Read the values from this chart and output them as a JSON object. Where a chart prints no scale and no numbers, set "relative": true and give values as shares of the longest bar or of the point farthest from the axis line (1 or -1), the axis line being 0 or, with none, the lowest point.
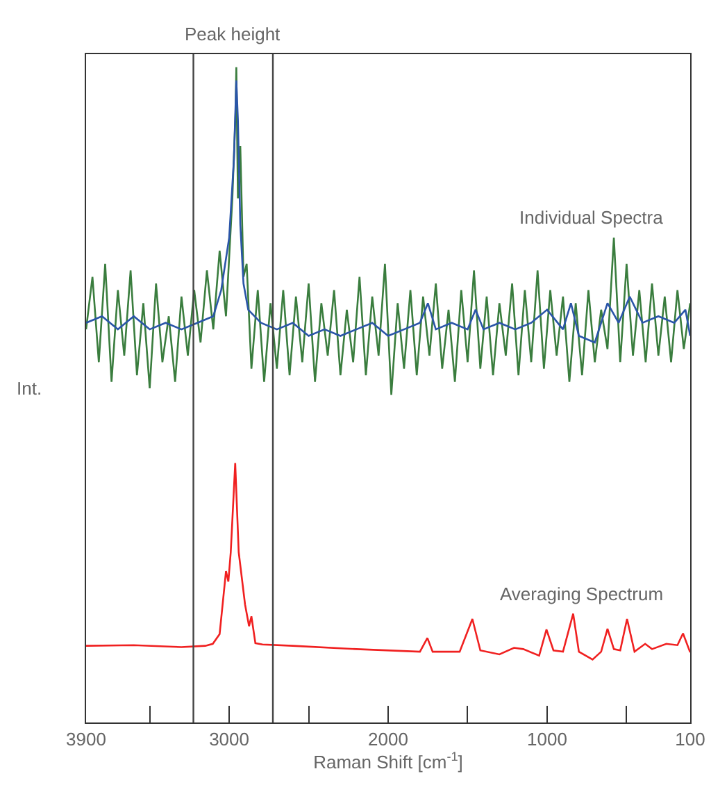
{
  "chart_data": {
    "type": "line",
    "relative": true,
    "xlabel": "Raman Shift [cm$^{-1}$]",
    "ylabel": "Int.",
    "xlim": [
      3900,
      100
    ],
    "xticks": [
      3900,
      {
        "value": 3500,
        "label": null
      },
      3000,
      {
        "value": 2500,
        "label": null
      },
      2000,
      {
        "value": 1500,
        "label": null
      },
      1000,
      {
        "value": 500,
        "label": null
      },
      100
    ],
    "grid": false,
    "legend": false,
    "line_style": "solid",
    "marker": "none",
    "ref_lines": [
      {
        "axis": "x",
        "value": 3225,
        "color": "#444444"
      },
      {
        "axis": "x",
        "value": 2725,
        "color": "#444444"
      }
    ],
    "annotations": [
      "Peak height"
    ],
    "series": [
      {
        "name": "Individual Spectra",
        "color": "#3a7d3e",
        "x": [
          3900,
          3860,
          3820,
          3780,
          3740,
          3700,
          3660,
          3620,
          3580,
          3540,
          3500,
          3460,
          3420,
          3380,
          3340,
          3300,
          3260,
          3220,
          3180,
          3140,
          3100,
          3060,
          3020,
          2980,
          2960,
          2955,
          2945,
          2930,
          2910,
          2890,
          2860,
          2820,
          2780,
          2740,
          2700,
          2660,
          2620,
          2580,
          2540,
          2500,
          2460,
          2420,
          2380,
          2340,
          2300,
          2260,
          2220,
          2180,
          2140,
          2100,
          2060,
          2020,
          1980,
          1940,
          1900,
          1860,
          1820,
          1780,
          1740,
          1700,
          1660,
          1620,
          1580,
          1540,
          1500,
          1460,
          1420,
          1380,
          1340,
          1300,
          1260,
          1220,
          1180,
          1140,
          1100,
          1060,
          1020,
          980,
          940,
          900,
          860,
          820,
          780,
          740,
          700,
          660,
          620,
          580,
          540,
          500,
          460,
          420,
          380,
          340,
          300,
          260,
          220,
          180,
          140,
          100
        ],
        "values": [
          0.6,
          0.68,
          0.55,
          0.7,
          0.52,
          0.66,
          0.56,
          0.69,
          0.53,
          0.64,
          0.51,
          0.67,
          0.55,
          0.62,
          0.52,
          0.65,
          0.56,
          0.66,
          0.58,
          0.69,
          0.6,
          0.72,
          0.62,
          0.8,
          0.93,
          1.0,
          0.8,
          0.88,
          0.68,
          0.7,
          0.54,
          0.66,
          0.52,
          0.64,
          0.54,
          0.66,
          0.53,
          0.65,
          0.55,
          0.67,
          0.52,
          0.64,
          0.56,
          0.66,
          0.53,
          0.63,
          0.55,
          0.68,
          0.53,
          0.65,
          0.56,
          0.7,
          0.5,
          0.64,
          0.54,
          0.66,
          0.53,
          0.65,
          0.56,
          0.67,
          0.54,
          0.63,
          0.52,
          0.66,
          0.55,
          0.69,
          0.54,
          0.65,
          0.53,
          0.64,
          0.56,
          0.67,
          0.53,
          0.66,
          0.55,
          0.69,
          0.54,
          0.66,
          0.56,
          0.65,
          0.52,
          0.64,
          0.53,
          0.66,
          0.55,
          0.63,
          0.57,
          0.74,
          0.55,
          0.7,
          0.56,
          0.66,
          0.55,
          0.67,
          0.56,
          0.65,
          0.55,
          0.66,
          0.57,
          0.64
        ]
      },
      {
        "color": "#2a55a8",
        "x": [
          3900,
          3800,
          3700,
          3600,
          3500,
          3400,
          3300,
          3200,
          3100,
          3050,
          3000,
          2970,
          2955,
          2945,
          2930,
          2910,
          2880,
          2800,
          2700,
          2600,
          2500,
          2400,
          2300,
          2200,
          2100,
          2000,
          1900,
          1800,
          1750,
          1700,
          1600,
          1500,
          1450,
          1400,
          1300,
          1200,
          1100,
          1000,
          900,
          850,
          800,
          700,
          620,
          550,
          480,
          400,
          300,
          200,
          130,
          100
        ],
        "values": [
          0.61,
          0.62,
          0.6,
          0.62,
          0.6,
          0.61,
          0.6,
          0.61,
          0.62,
          0.66,
          0.74,
          0.86,
          0.98,
          0.92,
          0.76,
          0.67,
          0.63,
          0.61,
          0.6,
          0.61,
          0.59,
          0.6,
          0.59,
          0.6,
          0.61,
          0.59,
          0.6,
          0.61,
          0.64,
          0.6,
          0.61,
          0.6,
          0.63,
          0.6,
          0.61,
          0.6,
          0.61,
          0.63,
          0.6,
          0.64,
          0.59,
          0.58,
          0.64,
          0.61,
          0.65,
          0.61,
          0.62,
          0.61,
          0.63,
          0.59
        ]
      },
      {
        "name": "Averaging Spectrum",
        "color": "#f02020",
        "x": [
          3900,
          3600,
          3300,
          3150,
          3103,
          3060,
          3020,
          3005,
          2990,
          2962,
          2940,
          2900,
          2875,
          2860,
          2835,
          2790,
          2600,
          2200,
          1800,
          1753,
          1720,
          1550,
          1470,
          1420,
          1300,
          1208,
          1150,
          1050,
          1004,
          960,
          900,
          836,
          800,
          714,
          660,
          620,
          580,
          540,
          497,
          450,
          383,
          340,
          250,
          180,
          145,
          100
        ],
        "values": [
          0.117,
          0.118,
          0.115,
          0.117,
          0.12,
          0.135,
          0.231,
          0.215,
          0.26,
          0.396,
          0.26,
          0.18,
          0.147,
          0.162,
          0.121,
          0.119,
          0.117,
          0.112,
          0.108,
          0.129,
          0.108,
          0.108,
          0.158,
          0.11,
          0.104,
          0.114,
          0.112,
          0.102,
          0.142,
          0.11,
          0.108,
          0.166,
          0.108,
          0.096,
          0.108,
          0.143,
          0.112,
          0.11,
          0.158,
          0.108,
          0.12,
          0.112,
          0.12,
          0.118,
          0.136,
          0.107
        ]
      }
    ]
  }
}
